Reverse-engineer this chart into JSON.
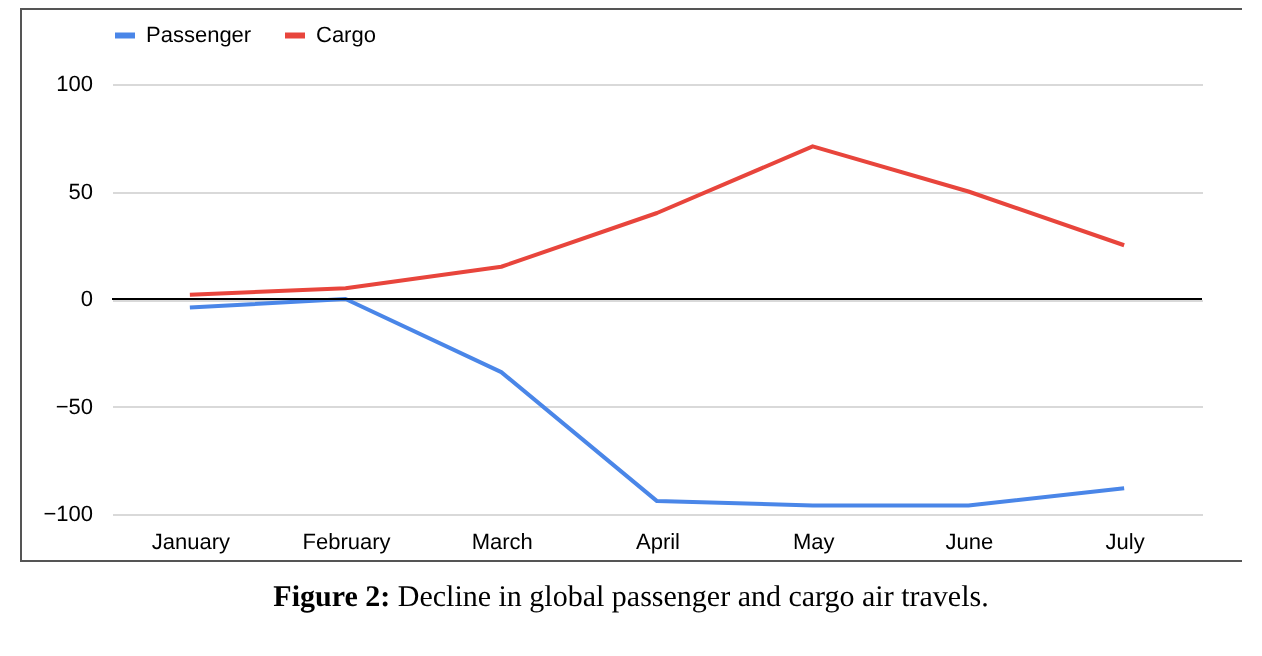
{
  "chart_data": {
    "type": "line",
    "categories": [
      "January",
      "February",
      "March",
      "April",
      "May",
      "June",
      "July"
    ],
    "series": [
      {
        "name": "Passenger",
        "color": "#4a86e8",
        "values": [
          -4,
          0,
          -34,
          -94,
          -96,
          -96,
          -88
        ]
      },
      {
        "name": "Cargo",
        "color": "#e8453c",
        "values": [
          2,
          5,
          15,
          40,
          71,
          50,
          25
        ]
      }
    ],
    "ylim": [
      -100,
      100
    ],
    "yticks": [
      -100,
      -50,
      0,
      50,
      100
    ],
    "grid": "y",
    "legend": "top",
    "marker": "none",
    "line_style": "solid",
    "ref_lines": [
      {
        "axis": "y",
        "value": 0,
        "color": "#000000"
      }
    ],
    "annotations": [
      "Figure 2: Decline in global passenger and cargo air travels."
    ]
  }
}
